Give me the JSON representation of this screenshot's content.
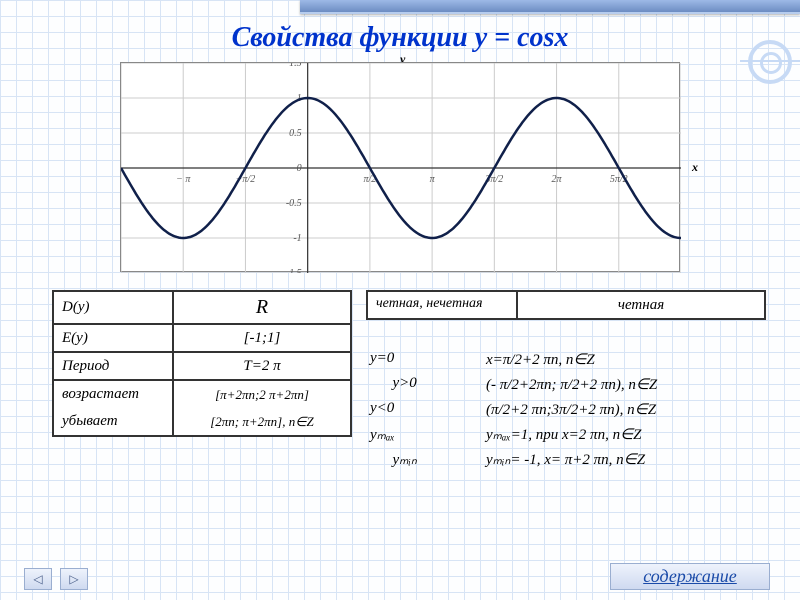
{
  "title": "Свойства функции y = cosx",
  "func_label": "y = cosx",
  "axis": {
    "x": "x",
    "y": "y"
  },
  "chart": {
    "type": "line",
    "background_color": "#ffffff",
    "curve_color": "#10204a",
    "curve_width": 2.5,
    "grid_color": "#cccccc",
    "axis_color": "#333333",
    "x_min_pi": -1.5,
    "x_max_pi": 3.0,
    "x_ticks_pi": [
      -1,
      -0.5,
      0.5,
      1,
      1.5,
      2,
      2.5
    ],
    "x_tick_labels": [
      "− π",
      "−π/2",
      "π/2",
      "π",
      "3π/2",
      "2π",
      "5π/2"
    ],
    "y_min": -1.5,
    "y_max": 1.5,
    "y_ticks": [
      -1.5,
      -1,
      -0.5,
      0,
      0.5,
      1,
      1.5
    ],
    "label_fontsize": 10
  },
  "table_left": {
    "rows": [
      {
        "k": "D(y)",
        "v": "R"
      },
      {
        "k": "E(y)",
        "v": "[-1;1]"
      },
      {
        "k": "Период",
        "v": "T=2 π"
      },
      {
        "k": "возрастает",
        "v": "[π+2πn;2 π+2πn]"
      },
      {
        "k": "убывает",
        "v": "[2πn; π+2πn],  n∈Z"
      }
    ]
  },
  "table_right_top": {
    "k": "четная, нечетная",
    "v": "четная"
  },
  "props_right": [
    {
      "k": "y=0",
      "v": "x=π/2+2 πn,  n∈Z"
    },
    {
      "k": "      y>0",
      "v": "(- π/2+2πn; π/2+2 πn),  n∈Z"
    },
    {
      "k": "y<0",
      "v": "(π/2+2 πn;3π/2+2 πn),  n∈Z"
    },
    {
      "k": "yₘₐₓ",
      "v": "yₘₐₓ=1, при x=2 πn,  n∈Z"
    },
    {
      "k": "      yₘᵢₙ",
      "v": "yₘᵢₙ= -1, x= π+2 πn,  n∈Z"
    }
  ],
  "nav": {
    "prev_icon": "◁",
    "next_icon": "▷"
  },
  "content_link": "содержание",
  "colors": {
    "title": "#0033cc",
    "grid_paper": "#d7e4f5",
    "table_border": "#333333",
    "button_bg_from": "#eef3fc",
    "button_bg_to": "#cfdaf0"
  }
}
